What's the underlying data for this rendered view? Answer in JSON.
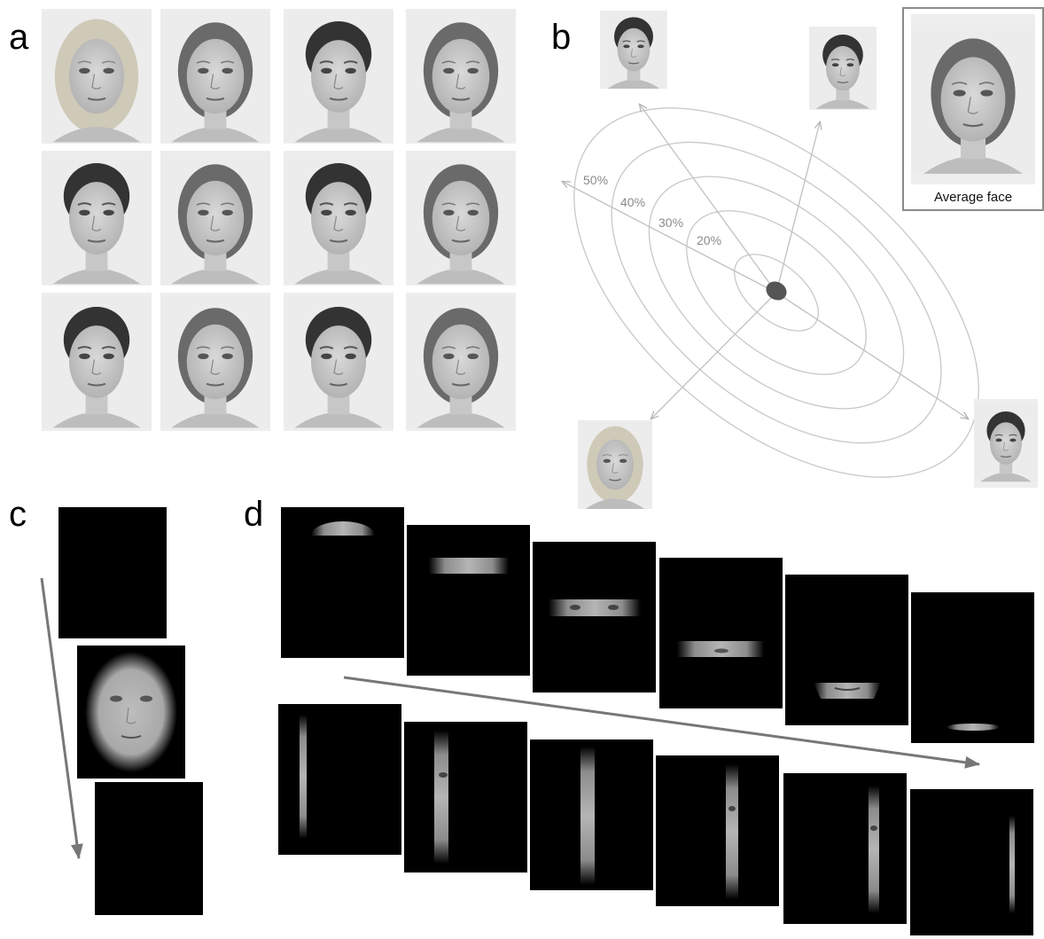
{
  "panels": {
    "a": "a",
    "b": "b",
    "c": "c",
    "d": "d"
  },
  "panel_b": {
    "ring_labels": [
      "50%",
      "40%",
      "30%",
      "20%"
    ],
    "average_face_caption": "Average face"
  },
  "colors": {
    "background": "#ffffff",
    "ring_stroke": "#c8c8c8",
    "arrow_gray": "#777777",
    "center_dot": "#555555",
    "percent_text": "#8a8a8a",
    "frame_black": "#000000"
  }
}
